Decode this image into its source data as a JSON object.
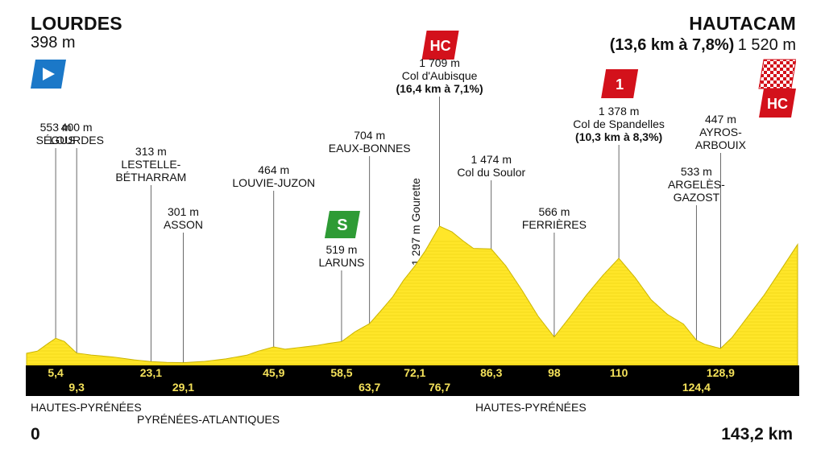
{
  "start": {
    "name": "LOURDES",
    "altitude": "398 m"
  },
  "finish": {
    "name": "HAUTACAM",
    "climb": "(13,6 km à 7,8%)",
    "altitude": "1 520 m"
  },
  "colors": {
    "profile": "#FFE629",
    "strip": "#000000",
    "km_text": "#F5E25A",
    "climb_badge": "#D3111B",
    "sprint_badge": "#2E9B35",
    "start_flag": "#1B78C8"
  },
  "icons": {
    "start": "start-flag-icon",
    "finish": "checkered-flag-icon"
  },
  "departments": [
    "HAUTES-PYRÉNÉES",
    "PYRÉNÉES-ATLANTIQUES",
    "HAUTES-PYRÉNÉES"
  ],
  "distance": {
    "start": "0",
    "end": "143,2 km"
  },
  "chart_data": {
    "type": "area",
    "x_unit": "km",
    "y_unit": "m",
    "xlim": [
      0,
      143.2
    ],
    "ylim": [
      200,
      1800
    ],
    "km_markers": [
      "5,4",
      "9,3",
      "23,1",
      "29,1",
      "45,9",
      "58,5",
      "63,7",
      "72,1",
      "76,7",
      "86,3",
      "98",
      "110",
      "124,4",
      "128,9"
    ],
    "points": [
      {
        "label": "SÉGUS",
        "alt": "553 m",
        "km": 5.4
      },
      {
        "label": "LOURDES",
        "alt": "400 m",
        "km": 9.3
      },
      {
        "label": "LESTELLE-BÉTHARRAM",
        "alt": "313 m",
        "km": 23.1
      },
      {
        "label": "ASSON",
        "alt": "301 m",
        "km": 29.1
      },
      {
        "label": "LOUVIE-JUZON",
        "alt": "464 m",
        "km": 45.9
      },
      {
        "label": "LARUNS",
        "alt": "519 m",
        "km": 58.5
      },
      {
        "label": "EAUX-BONNES",
        "alt": "704 m",
        "km": 63.7
      },
      {
        "label": "Gourette",
        "alt": "1 297 m",
        "km": 72.1
      },
      {
        "label": "Col d'Aubisque",
        "alt": "1 709 m",
        "km": 76.7,
        "detail": "(16,4 km à 7,1%)",
        "category": "HC"
      },
      {
        "label": "Col du Soulor",
        "alt": "1 474 m",
        "km": 86.3
      },
      {
        "label": "FERRIÈRES",
        "alt": "566 m",
        "km": 98
      },
      {
        "label": "Col de Spandelles",
        "alt": "1 378 m",
        "km": 110,
        "detail": "(10,3 km à 8,3%)",
        "category": "1"
      },
      {
        "label": "ARGELÈS-GAZOST",
        "alt": "533 m",
        "km": 124.4
      },
      {
        "label": "AYROS-ARBOUIX",
        "alt": "447 m",
        "km": 128.9
      }
    ],
    "sprint": {
      "label": "S",
      "km": 58.5
    },
    "profile": [
      [
        0,
        398
      ],
      [
        2,
        420
      ],
      [
        4,
        500
      ],
      [
        5.4,
        553
      ],
      [
        7,
        520
      ],
      [
        9.3,
        400
      ],
      [
        12,
        380
      ],
      [
        16,
        360
      ],
      [
        20,
        330
      ],
      [
        23.1,
        313
      ],
      [
        26,
        305
      ],
      [
        29.1,
        301
      ],
      [
        33,
        315
      ],
      [
        37,
        340
      ],
      [
        41,
        380
      ],
      [
        43,
        420
      ],
      [
        45.9,
        464
      ],
      [
        48,
        440
      ],
      [
        51,
        460
      ],
      [
        54,
        480
      ],
      [
        56,
        500
      ],
      [
        58.5,
        519
      ],
      [
        61,
        620
      ],
      [
        63.7,
        704
      ],
      [
        66,
        850
      ],
      [
        68,
        980
      ],
      [
        70,
        1150
      ],
      [
        72.1,
        1297
      ],
      [
        74,
        1450
      ],
      [
        76.7,
        1709
      ],
      [
        79,
        1650
      ],
      [
        81,
        1560
      ],
      [
        83,
        1480
      ],
      [
        86.3,
        1474
      ],
      [
        89,
        1300
      ],
      [
        92,
        1050
      ],
      [
        95,
        780
      ],
      [
        98,
        566
      ],
      [
        101,
        780
      ],
      [
        104,
        1000
      ],
      [
        107,
        1200
      ],
      [
        110,
        1378
      ],
      [
        113,
        1180
      ],
      [
        116,
        950
      ],
      [
        119,
        800
      ],
      [
        122,
        700
      ],
      [
        124.4,
        533
      ],
      [
        126,
        490
      ],
      [
        128.9,
        447
      ],
      [
        131,
        560
      ],
      [
        134,
        780
      ],
      [
        137,
        1000
      ],
      [
        140,
        1250
      ],
      [
        143.2,
        1520
      ]
    ]
  }
}
